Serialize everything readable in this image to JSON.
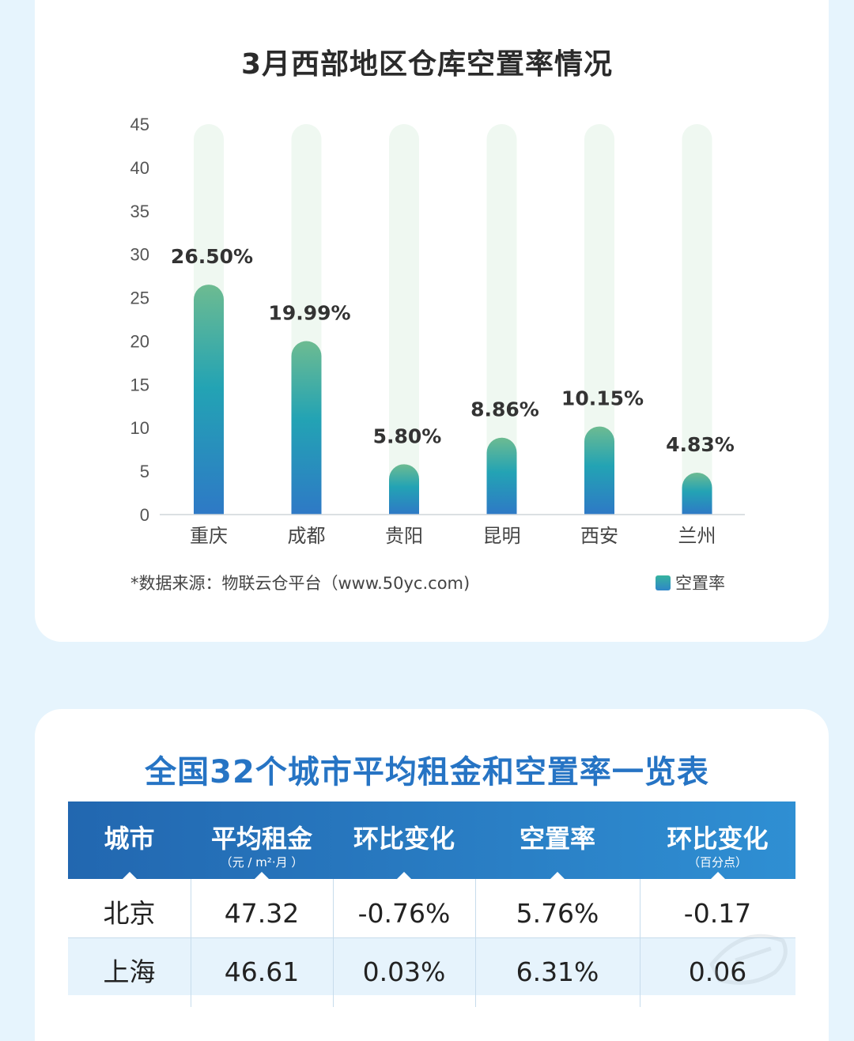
{
  "chart_data": {
    "type": "bar",
    "title": "3月西部地区仓库空置率情况",
    "categories": [
      "重庆",
      "成都",
      "贵阳",
      "昆明",
      "西安",
      "兰州"
    ],
    "series": [
      {
        "name": "空置率",
        "values": [
          26.5,
          19.99,
          5.8,
          8.86,
          10.15,
          4.83
        ],
        "labels": [
          "26.50%",
          "19.99%",
          "5.80%",
          "8.86%",
          "10.15%",
          "4.83%"
        ]
      }
    ],
    "yticks": [
      "0",
      "5",
      "10",
      "15",
      "20",
      "25",
      "30",
      "35",
      "40",
      "45"
    ],
    "ylim": [
      0,
      45
    ],
    "xlabel": "",
    "ylabel": "",
    "grid": false,
    "legend_position": "bottom-right",
    "colors": {
      "bar_top": "#6dbb91",
      "bar_mid": "#23a3b4",
      "bar_bottom": "#2e79c6",
      "track": "#eff8f1"
    }
  },
  "source_note": "*数据来源：物联云仓平台（www.50yc.com)",
  "legend_label": "空置率",
  "table": {
    "title": "全国32个城市平均租金和空置率一览表",
    "headers": [
      {
        "main": "城市",
        "sub": ""
      },
      {
        "main": "平均租金",
        "sub": "（元 / m²·月 ）"
      },
      {
        "main": "环比变化",
        "sub": ""
      },
      {
        "main": "空置率",
        "sub": ""
      },
      {
        "main": "环比变化",
        "sub": "（百分点）"
      }
    ],
    "rows": [
      [
        "北京",
        "47.32",
        "-0.76%",
        "5.76%",
        "-0.17"
      ],
      [
        "上海",
        "46.61",
        "0.03%",
        "6.31%",
        "0.06"
      ]
    ]
  },
  "colors": {
    "page_bg": "#e6f4fd",
    "table_title": "#2674c4",
    "header_bg": "#2267b0",
    "alt_row": "#e6f3fc"
  }
}
